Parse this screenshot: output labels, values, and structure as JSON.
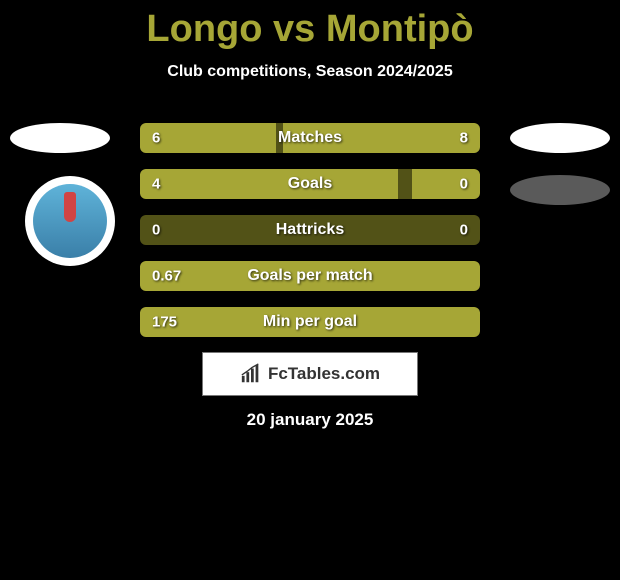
{
  "colors": {
    "background": "#000000",
    "accent": "#a6a636",
    "bar_bg": "#525217",
    "text": "#ffffff"
  },
  "header": {
    "title": "Longo vs Montipò",
    "subtitle": "Club competitions, Season 2024/2025"
  },
  "stats": [
    {
      "label": "Matches",
      "left_value": "6",
      "right_value": "8",
      "left_pct": 40,
      "right_pct": 58,
      "show_right": true
    },
    {
      "label": "Goals",
      "left_value": "4",
      "right_value": "0",
      "left_pct": 76,
      "right_pct": 20,
      "show_right": true
    },
    {
      "label": "Hattricks",
      "left_value": "0",
      "right_value": "0",
      "left_pct": 0,
      "right_pct": 0,
      "show_right": true
    },
    {
      "label": "Goals per match",
      "left_value": "0.67",
      "right_value": "",
      "left_pct": 100,
      "right_pct": 0,
      "show_right": false
    },
    {
      "label": "Min per goal",
      "left_value": "175",
      "right_value": "",
      "left_pct": 100,
      "right_pct": 0,
      "show_right": false
    }
  ],
  "branding": {
    "site": "FcTables.com"
  },
  "date": "20 january 2025"
}
